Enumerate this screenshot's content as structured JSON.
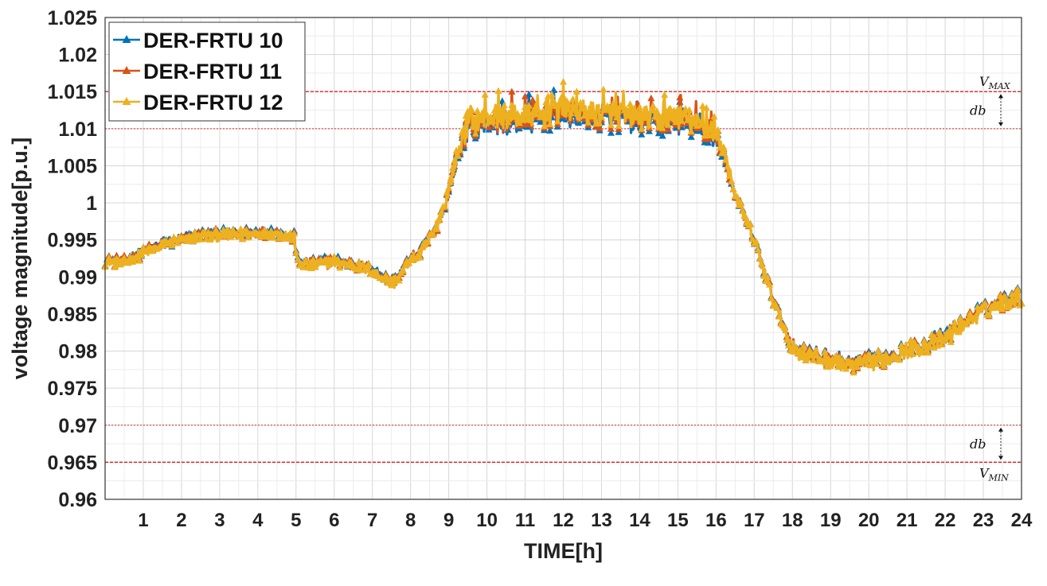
{
  "chart_data": {
    "type": "line",
    "xlabel": "TIME[h]",
    "ylabel": "voltage magnitude[p.u.]",
    "xlim": [
      0,
      24
    ],
    "ylim": [
      0.96,
      1.025
    ],
    "grid": true,
    "legend_position": "top-left",
    "x_ticks": [
      "1",
      "2",
      "3",
      "4",
      "5",
      "6",
      "7",
      "8",
      "9",
      "10",
      "11",
      "12",
      "13",
      "14",
      "15",
      "16",
      "17",
      "18",
      "19",
      "20",
      "21",
      "22",
      "23",
      "24"
    ],
    "y_ticks": [
      "0.96",
      "0.965",
      "0.97",
      "0.975",
      "0.98",
      "0.985",
      "0.99",
      "0.995",
      "1",
      "1.005",
      "1.01",
      "1.015",
      "1.02",
      "1.025"
    ],
    "reference_lines": [
      {
        "value": 1.015,
        "style": "dashed",
        "color": "#d62728"
      },
      {
        "value": 1.01,
        "style": "dotted",
        "color": "#d62728"
      },
      {
        "value": 0.97,
        "style": "dotted",
        "color": "#d62728"
      },
      {
        "value": 0.965,
        "style": "dashed",
        "color": "#d62728"
      }
    ],
    "annotations": {
      "vmax": {
        "main": "V",
        "sub": "MAX"
      },
      "db_top": "db",
      "db_bottom": "db",
      "vmin": {
        "main": "V",
        "sub": "MIN"
      }
    },
    "x": [
      0,
      0.5,
      1,
      1.5,
      2,
      2.5,
      3,
      3.5,
      4,
      4.5,
      4.95,
      5.05,
      5.5,
      6,
      6.5,
      7,
      7.3,
      7.6,
      8,
      8.3,
      8.6,
      8.9,
      9.2,
      9.5,
      10,
      10.5,
      11,
      11.5,
      12,
      12.5,
      13,
      13.5,
      14,
      14.5,
      15,
      15.5,
      15.9,
      16.2,
      16.5,
      17,
      17.5,
      18,
      18.5,
      19,
      19.5,
      20,
      20.5,
      21,
      21.5,
      22,
      22.5,
      23,
      23.5,
      24
    ],
    "series": [
      {
        "name": "DER-FRTU 10",
        "color": "#0072BD",
        "values": [
          0.9922,
          0.9921,
          0.9934,
          0.9945,
          0.9951,
          0.9957,
          0.9958,
          0.9959,
          0.9961,
          0.996,
          0.9955,
          0.992,
          0.9918,
          0.9922,
          0.9917,
          0.991,
          0.99,
          0.9895,
          0.9925,
          0.9935,
          0.996,
          0.9995,
          1.0055,
          1.01,
          1.0108,
          1.0108,
          1.011,
          1.0112,
          1.0118,
          1.0115,
          1.0113,
          1.011,
          1.0108,
          1.0105,
          1.011,
          1.0098,
          1.0092,
          1.0065,
          1.001,
          0.995,
          0.987,
          0.9805,
          0.9795,
          0.979,
          0.9783,
          0.9787,
          0.9793,
          0.9803,
          0.981,
          0.982,
          0.984,
          0.9855,
          0.9868,
          0.9875
        ]
      },
      {
        "name": "DER-FRTU 11",
        "color": "#D95319",
        "values": [
          0.9921,
          0.992,
          0.9933,
          0.9944,
          0.995,
          0.9956,
          0.9957,
          0.9958,
          0.996,
          0.9959,
          0.9954,
          0.9919,
          0.9917,
          0.9921,
          0.9916,
          0.9909,
          0.9899,
          0.9894,
          0.9924,
          0.9934,
          0.9959,
          0.9996,
          1.0058,
          1.0104,
          1.0112,
          1.0112,
          1.0114,
          1.0116,
          1.0122,
          1.0119,
          1.0117,
          1.0114,
          1.0112,
          1.0109,
          1.0114,
          1.0102,
          1.0096,
          1.0068,
          1.0011,
          0.9949,
          0.9869,
          0.9804,
          0.9794,
          0.9789,
          0.9782,
          0.9786,
          0.9792,
          0.9802,
          0.9809,
          0.9819,
          0.9839,
          0.9854,
          0.9867,
          0.9874
        ]
      },
      {
        "name": "DER-FRTU 12",
        "color": "#EDB120",
        "values": [
          0.992,
          0.9919,
          0.9932,
          0.9943,
          0.9949,
          0.9955,
          0.9956,
          0.9957,
          0.9959,
          0.9958,
          0.9953,
          0.9918,
          0.9916,
          0.992,
          0.9915,
          0.9908,
          0.9898,
          0.9893,
          0.9923,
          0.9933,
          0.9958,
          0.9997,
          1.0062,
          1.0108,
          1.0116,
          1.0116,
          1.0118,
          1.012,
          1.0126,
          1.0123,
          1.0121,
          1.0118,
          1.0116,
          1.0113,
          1.0118,
          1.0106,
          1.01,
          1.0071,
          1.0012,
          0.9948,
          0.9868,
          0.9803,
          0.9793,
          0.9788,
          0.9781,
          0.9785,
          0.9791,
          0.9801,
          0.9808,
          0.9818,
          0.9838,
          0.9853,
          0.9866,
          0.9873
        ]
      }
    ]
  }
}
